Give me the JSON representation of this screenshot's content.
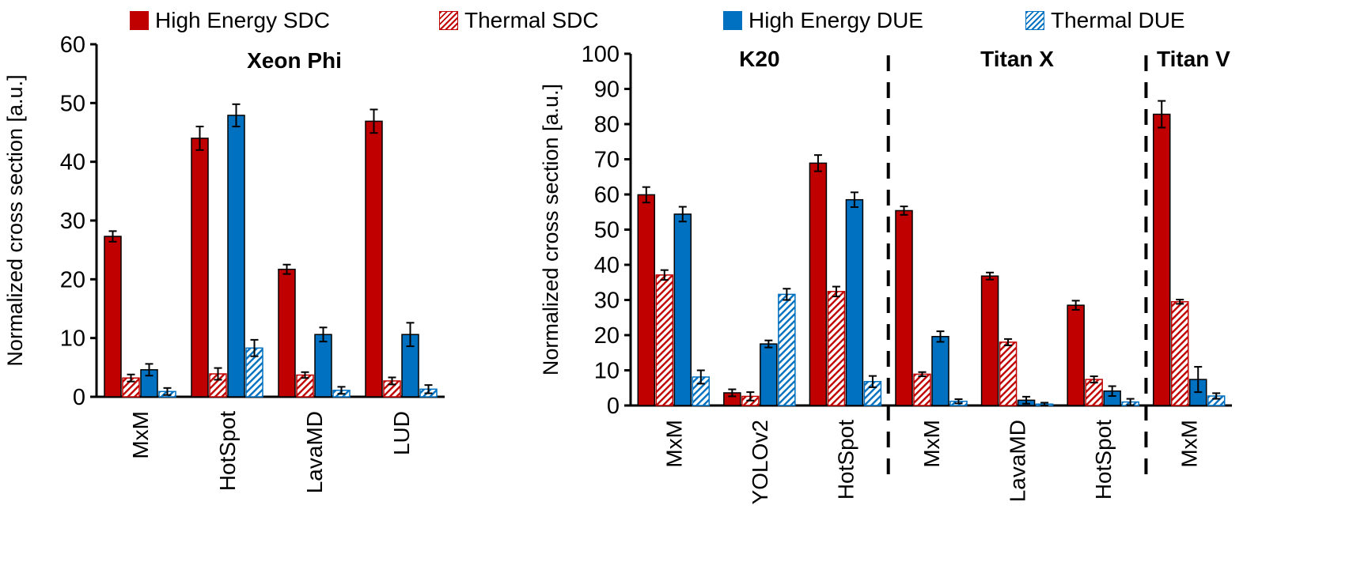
{
  "legend": [
    {
      "key": "he_sdc",
      "label": "High Energy SDC",
      "color": "#C00000",
      "pattern": "solid"
    },
    {
      "key": "th_sdc",
      "label": "Thermal SDC",
      "color": "#C00000",
      "pattern": "hatch"
    },
    {
      "key": "he_due",
      "label": "High Energy DUE",
      "color": "#0070C0",
      "pattern": "solid"
    },
    {
      "key": "th_due",
      "label": "Thermal DUE",
      "color": "#0070C0",
      "pattern": "hatch"
    }
  ],
  "chart_data": [
    {
      "type": "bar",
      "title": "Xeon Phi",
      "ylabel": "Normalized cross section [a.u.]",
      "ylim": [
        0,
        60
      ],
      "yticks": [
        0,
        10,
        20,
        30,
        40,
        50,
        60
      ],
      "categories": [
        "MxM",
        "HotSpot",
        "LavaMD",
        "LUD"
      ],
      "series": [
        {
          "name": "High Energy SDC",
          "values": [
            27.3,
            44.0,
            21.7,
            46.9
          ],
          "errors": [
            0.9,
            2.0,
            0.8,
            2.0
          ]
        },
        {
          "name": "Thermal SDC",
          "values": [
            3.2,
            3.9,
            3.7,
            2.7
          ],
          "errors": [
            0.6,
            1.0,
            0.5,
            0.6
          ]
        },
        {
          "name": "High Energy DUE",
          "values": [
            4.6,
            47.9,
            10.6,
            10.6
          ],
          "errors": [
            1.0,
            1.9,
            1.2,
            2.0
          ]
        },
        {
          "name": "Thermal DUE",
          "values": [
            0.9,
            8.3,
            1.1,
            1.3
          ],
          "errors": [
            0.6,
            1.4,
            0.6,
            0.7
          ]
        }
      ]
    },
    {
      "type": "bar",
      "ylabel": "Normalized cross section [a.u.]",
      "ylim": [
        0,
        100
      ],
      "yticks": [
        0,
        10,
        20,
        30,
        40,
        50,
        60,
        70,
        80,
        90,
        100
      ],
      "groups": [
        {
          "title": "K20",
          "categories": [
            "MxM",
            "YOLOv2",
            "HotSpot"
          ]
        },
        {
          "title": "Titan X",
          "categories": [
            "MxM",
            "LavaMD",
            "HotSpot"
          ]
        },
        {
          "title": "Titan V",
          "categories": [
            "MxM"
          ]
        }
      ],
      "categories": [
        "MxM",
        "YOLOv2",
        "HotSpot",
        "MxM",
        "LavaMD",
        "HotSpot",
        "MxM"
      ],
      "series": [
        {
          "name": "High Energy SDC",
          "values": [
            59.9,
            3.6,
            68.9,
            55.4,
            36.8,
            28.5,
            82.8
          ],
          "errors": [
            2.2,
            1.0,
            2.3,
            1.2,
            1.0,
            1.3,
            3.8
          ]
        },
        {
          "name": "Thermal SDC",
          "values": [
            37.1,
            2.6,
            32.4,
            8.9,
            18.0,
            7.4,
            29.5
          ],
          "errors": [
            1.4,
            1.2,
            1.4,
            0.6,
            0.9,
            0.9,
            0.6
          ]
        },
        {
          "name": "High Energy DUE",
          "values": [
            54.4,
            17.5,
            58.5,
            19.6,
            1.5,
            4.1,
            7.4
          ],
          "errors": [
            2.1,
            1.0,
            2.1,
            1.5,
            1.0,
            1.4,
            3.6
          ]
        },
        {
          "name": "Thermal DUE",
          "values": [
            8.1,
            31.6,
            6.8,
            1.2,
            0.4,
            1.0,
            2.7
          ],
          "errors": [
            1.9,
            1.6,
            1.6,
            0.6,
            0.4,
            0.9,
            0.8
          ]
        }
      ]
    }
  ]
}
